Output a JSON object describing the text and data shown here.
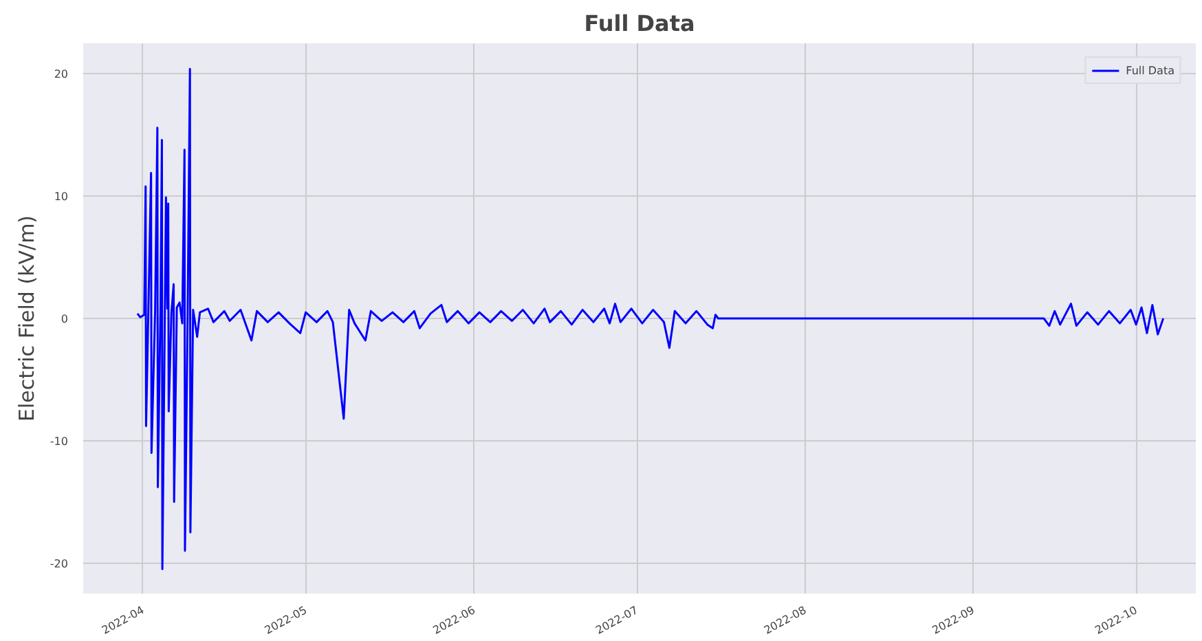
{
  "chart_data": {
    "type": "line",
    "title": "Full Data",
    "ylabel": "Electric Field (kV/m)",
    "xlim": [
      "2022-03-21",
      "2022-10-12"
    ],
    "ylim": [
      -22.5,
      22.5
    ],
    "xticks": [
      "2022-04",
      "2022-05",
      "2022-06",
      "2022-07",
      "2022-08",
      "2022-09",
      "2022-10"
    ],
    "yticks": [
      -20,
      -10,
      0,
      10,
      20
    ],
    "grid": true,
    "legend": "top right",
    "marker": "none",
    "line_style": "solid",
    "series": [
      {
        "name": "Full Data",
        "color": "#0000ff",
        "x": [
          "2022-03-31T00:00",
          "2022-03-31T12:00",
          "2022-04-01T06:00",
          "2022-04-01T12:00",
          "2022-04-01T14:00",
          "2022-04-02T00:00",
          "2022-04-02T12:00",
          "2022-04-02T14:00",
          "2022-04-03T06:00",
          "2022-04-03T16:00",
          "2022-04-03T18:00",
          "2022-04-04T06:00",
          "2022-04-04T12:00",
          "2022-04-04T14:00",
          "2022-04-05T06:00",
          "2022-04-05T12:00",
          "2022-04-05T16:00",
          "2022-04-05T18:00",
          "2022-04-06T06:00",
          "2022-04-06T16:00",
          "2022-04-06T18:00",
          "2022-04-07T06:00",
          "2022-04-07T18:00",
          "2022-04-08T06:00",
          "2022-04-08T16:00",
          "2022-04-08T18:00",
          "2022-04-09T06:00",
          "2022-04-09T16:00",
          "2022-04-09T18:00",
          "2022-04-10T06:00",
          "2022-04-11T00:00",
          "2022-04-11T12:00",
          "2022-04-13",
          "2022-04-14",
          "2022-04-16",
          "2022-04-17",
          "2022-04-19",
          "2022-04-21",
          "2022-04-22",
          "2022-04-24",
          "2022-04-26",
          "2022-04-28",
          "2022-04-30",
          "2022-05-01",
          "2022-05-03",
          "2022-05-05",
          "2022-05-06",
          "2022-05-08",
          "2022-05-09",
          "2022-05-10",
          "2022-05-12",
          "2022-05-13",
          "2022-05-15",
          "2022-05-17",
          "2022-05-19",
          "2022-05-21",
          "2022-05-22",
          "2022-05-24",
          "2022-05-26",
          "2022-05-27",
          "2022-05-29",
          "2022-05-31",
          "2022-06-02",
          "2022-06-04",
          "2022-06-06",
          "2022-06-08",
          "2022-06-10",
          "2022-06-12",
          "2022-06-14",
          "2022-06-15",
          "2022-06-17",
          "2022-06-19",
          "2022-06-21",
          "2022-06-23",
          "2022-06-25",
          "2022-06-26",
          "2022-06-27",
          "2022-06-28",
          "2022-06-30",
          "2022-07-02",
          "2022-07-04",
          "2022-07-06",
          "2022-07-07",
          "2022-07-08",
          "2022-07-10",
          "2022-07-12",
          "2022-07-14",
          "2022-07-15",
          "2022-07-15T12:00",
          "2022-07-16",
          "2022-09-14",
          "2022-09-15",
          "2022-09-16",
          "2022-09-17",
          "2022-09-19",
          "2022-09-20",
          "2022-09-22",
          "2022-09-24",
          "2022-09-26",
          "2022-09-28",
          "2022-09-30",
          "2022-10-01",
          "2022-10-02",
          "2022-10-03",
          "2022-10-04",
          "2022-10-05",
          "2022-10-06"
        ],
        "values": [
          0.4,
          0.1,
          0.3,
          10.8,
          -8.8,
          0.5,
          11.9,
          -11.0,
          0.6,
          15.6,
          -13.8,
          1.2,
          14.6,
          -20.5,
          9.9,
          0.8,
          9.4,
          -7.6,
          0.4,
          2.8,
          -15.0,
          0.9,
          1.3,
          -0.4,
          13.8,
          -19.0,
          0.6,
          20.4,
          -17.5,
          0.7,
          -1.5,
          0.5,
          0.8,
          -0.3,
          0.6,
          -0.2,
          0.7,
          -1.8,
          0.6,
          -0.3,
          0.5,
          -0.4,
          -1.2,
          0.5,
          -0.3,
          0.6,
          -0.3,
          -8.2,
          0.7,
          -0.4,
          -1.8,
          0.6,
          -0.2,
          0.5,
          -0.3,
          0.6,
          -0.8,
          0.4,
          1.1,
          -0.3,
          0.6,
          -0.4,
          0.5,
          -0.3,
          0.6,
          -0.2,
          0.7,
          -0.4,
          0.8,
          -0.3,
          0.6,
          -0.5,
          0.7,
          -0.3,
          0.8,
          -0.4,
          1.2,
          -0.3,
          0.8,
          -0.4,
          0.7,
          -0.3,
          -2.4,
          0.6,
          -0.4,
          0.6,
          -0.5,
          -0.8,
          0.3,
          0.0,
          0.0,
          -0.6,
          0.6,
          -0.5,
          1.2,
          -0.6,
          0.5,
          -0.5,
          0.6,
          -0.4,
          0.7,
          -0.5,
          0.9,
          -1.2,
          1.1,
          -1.3,
          0.0
        ]
      }
    ]
  }
}
